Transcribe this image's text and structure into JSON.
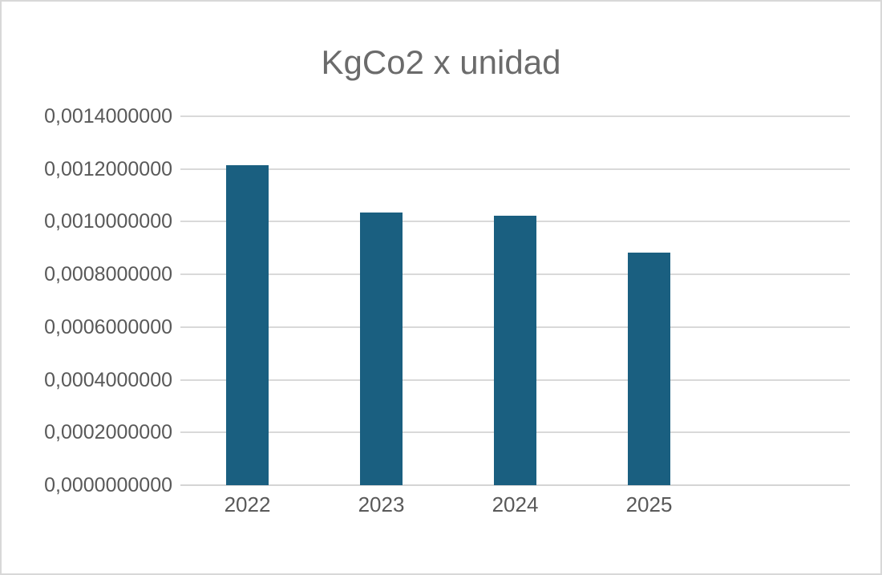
{
  "page": {
    "background": "#ffffff",
    "border_color": "#d8d8d8"
  },
  "chart_data": {
    "type": "bar",
    "title": "KgCo2 x unidad",
    "categories": [
      "2022",
      "2023",
      "2024",
      "2025"
    ],
    "values": [
      0.001213,
      0.001035,
      0.001022,
      0.000882
    ],
    "xlabel": "",
    "ylabel": "",
    "ylim": [
      0,
      0.0014
    ],
    "y_ticks": [
      0.0,
      0.0002,
      0.0004,
      0.0006,
      0.0008,
      0.001,
      0.0012,
      0.0014
    ],
    "y_tick_labels": [
      "0,0000000000",
      "0,0002000000",
      "0,0004000000",
      "0,0006000000",
      "0,0008000000",
      "0,0010000000",
      "0,0012000000",
      "0,0014000000"
    ],
    "decimal_separator": ",",
    "grid": true,
    "legend": false,
    "x_slots_total": 5,
    "bar_color": "#1a5f80",
    "title_color": "#6b6b6b",
    "tick_label_color": "#595959",
    "gridline_color": "#d9d9d9",
    "axis_line_color": "#d4d4d4"
  }
}
